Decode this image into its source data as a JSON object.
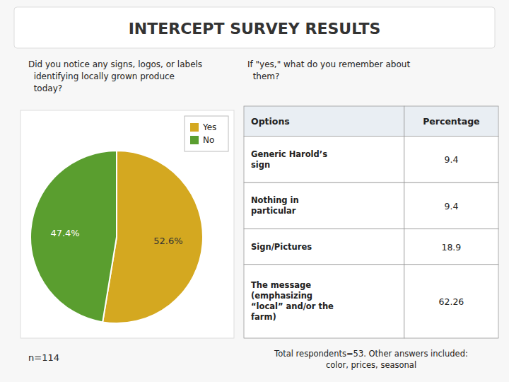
{
  "chart_data": [
    {
      "type": "pie",
      "title": "INTERCEPT SURVEY RESULTS",
      "categories": [
        "Yes",
        "No"
      ],
      "values": [
        52.6,
        47.4
      ],
      "value_labels": [
        "52.6%",
        "47.4%"
      ],
      "colors": [
        "#d4a820",
        "#5a9e2f"
      ],
      "data_labels": true,
      "legend": "upper right",
      "annotations": [
        "Did you notice any signs, logos, or labels\n  identifying locally grown produce\n  today?",
        "n=114"
      ]
    },
    {
      "type": "table",
      "columns": [
        "Options",
        "Percentage"
      ],
      "categories": [
        "Generic Harold’s\nsign",
        "Nothing in\nparticular",
        "Sign/Pictures",
        "The message\n(emphasizing\n“local” and/or the\nfarm)"
      ],
      "values": [
        9.4,
        9.4,
        18.9,
        62.26
      ],
      "annotations": [
        "If \"yes,\" what do you remember about\n  them?",
        "Total respondents=53. Other answers included:\ncolor, prices, seasonal"
      ]
    }
  ]
}
